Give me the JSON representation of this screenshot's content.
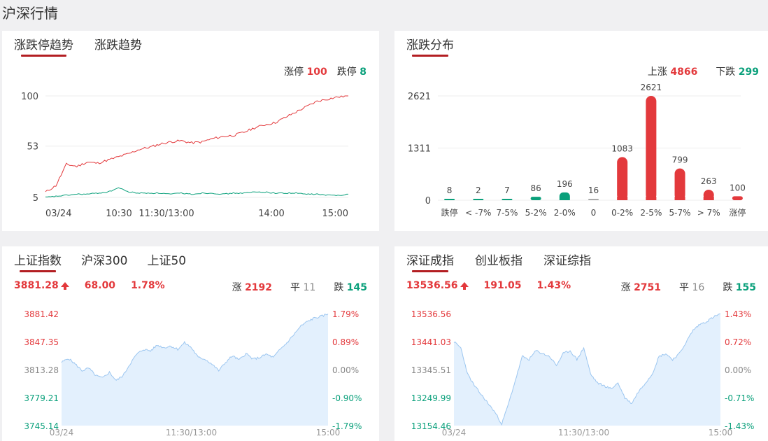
{
  "page": {
    "title": "沪深行情"
  },
  "limit_trend": {
    "tabs": [
      "涨跌停趋势",
      "涨跌趋势"
    ],
    "legend": {
      "up_label": "涨停",
      "up_value": "100",
      "down_label": "跌停",
      "down_value": "8"
    },
    "chart_data": {
      "type": "line",
      "y_ticks": [
        "100",
        "53",
        "5"
      ],
      "x_ticks": [
        "03/24",
        "10:30",
        "11:30/13:00",
        "14:00",
        "15:00"
      ],
      "ylim": [
        5,
        100
      ],
      "series": [
        {
          "name": "涨停",
          "color": "#e3393c",
          "values": [
            10,
            16,
            36,
            34,
            38,
            37,
            40,
            43,
            46,
            50,
            52,
            55,
            57,
            58,
            56,
            57,
            60,
            62,
            63,
            66,
            70,
            73,
            75,
            80,
            85,
            90,
            95,
            97,
            99,
            100
          ]
        },
        {
          "name": "跌停",
          "color": "#0aa07b",
          "values": [
            5,
            6,
            7,
            8,
            8,
            9,
            10,
            14,
            10,
            9,
            9,
            9,
            8,
            9,
            8,
            9,
            9,
            8,
            9,
            9,
            10,
            10,
            9,
            9,
            9,
            8,
            8,
            7,
            7,
            8
          ]
        }
      ]
    }
  },
  "distribution": {
    "tabs": [
      "涨跌分布"
    ],
    "legend": {
      "up_label": "上涨",
      "up_value": "4866",
      "down_label": "下跌",
      "down_value": "299"
    },
    "chart_data": {
      "type": "bar",
      "y_ticks": [
        "2621",
        "1311",
        "0"
      ],
      "ylim": [
        0,
        2621
      ],
      "categories": [
        "跌停",
        "< -7%",
        "7-5%",
        "5-2%",
        "2-0%",
        "0",
        "0-2%",
        "2-5%",
        "5-7%",
        "> 7%",
        "涨停"
      ],
      "values": [
        8,
        2,
        7,
        86,
        196,
        16,
        1083,
        2621,
        799,
        263,
        100
      ],
      "labels": [
        "8",
        "2",
        "7",
        "86",
        "196",
        "16",
        "1083",
        "2621",
        "799",
        "263",
        "100"
      ],
      "colors": [
        "#0aa07b",
        "#0aa07b",
        "#0aa07b",
        "#0aa07b",
        "#0aa07b",
        "#aaaaaa",
        "#e3393c",
        "#e3393c",
        "#e3393c",
        "#e3393c",
        "#e3393c"
      ]
    }
  },
  "sh_index": {
    "tabs": [
      "上证指数",
      "沪深300",
      "上证50"
    ],
    "price": "3881.28",
    "change": "68.00",
    "pct": "1.78%",
    "up_label": "涨",
    "up_value": "2192",
    "flat_label": "平",
    "flat_value": "11",
    "down_label": "跌",
    "down_value": "145",
    "chart_data": {
      "type": "area",
      "y_ticks": [
        "3881.42",
        "3847.35",
        "3813.28",
        "3779.21",
        "3745.14"
      ],
      "pct_ticks": [
        "1.79%",
        "0.89%",
        "0.00%",
        "-0.90%",
        "-1.79%"
      ],
      "x_ticks": [
        "03/24",
        "11:30/13:00",
        "15:00"
      ],
      "ylim": [
        3745.14,
        3881.42
      ],
      "values": [
        3822,
        3827,
        3820,
        3812,
        3815,
        3806,
        3803,
        3810,
        3800,
        3806,
        3820,
        3832,
        3838,
        3836,
        3843,
        3840,
        3842,
        3838,
        3846,
        3840,
        3828,
        3826,
        3820,
        3812,
        3822,
        3830,
        3825,
        3833,
        3826,
        3828,
        3832,
        3828,
        3838,
        3846,
        3856,
        3866,
        3872,
        3876,
        3878,
        3881
      ]
    }
  },
  "sz_index": {
    "tabs": [
      "深证成指",
      "创业板指",
      "深证综指"
    ],
    "price": "13536.56",
    "change": "191.05",
    "pct": "1.43%",
    "up_label": "涨",
    "up_value": "2751",
    "flat_label": "平",
    "flat_value": "16",
    "down_label": "跌",
    "down_value": "155",
    "chart_data": {
      "type": "area",
      "y_ticks": [
        "13536.56",
        "13441.03",
        "13345.51",
        "13249.99",
        "13154.46"
      ],
      "pct_ticks": [
        "1.43%",
        "0.72%",
        "0.00%",
        "-0.71%",
        "-1.43%"
      ],
      "x_ticks": [
        "03/24",
        "11:30/13:00",
        "15:00"
      ],
      "ylim": [
        13154.46,
        13536.56
      ],
      "values": [
        13440,
        13420,
        13330,
        13290,
        13260,
        13230,
        13200,
        13160,
        13230,
        13310,
        13390,
        13380,
        13410,
        13400,
        13390,
        13360,
        13400,
        13410,
        13380,
        13420,
        13330,
        13300,
        13290,
        13280,
        13300,
        13250,
        13230,
        13270,
        13300,
        13330,
        13390,
        13400,
        13380,
        13400,
        13440,
        13480,
        13500,
        13510,
        13525,
        13536
      ]
    }
  }
}
